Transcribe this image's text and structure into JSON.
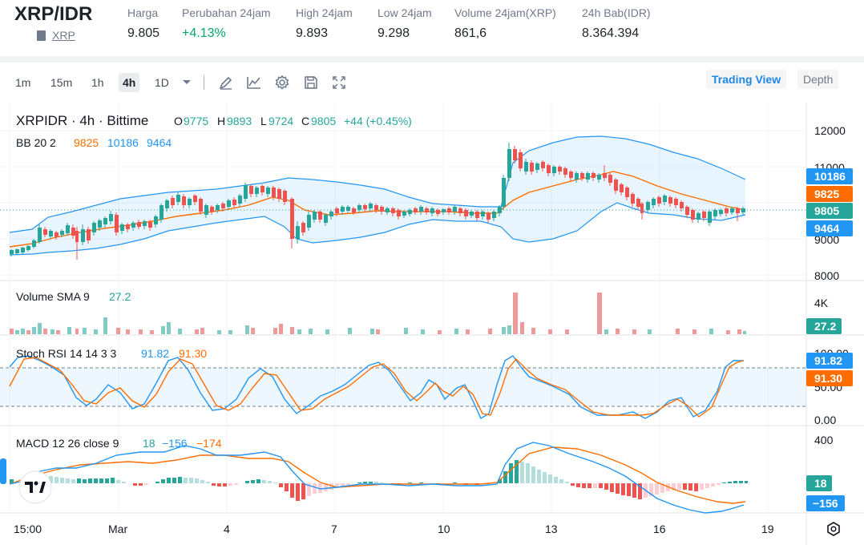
{
  "header": {
    "pair": "XRP/IDR",
    "coin_link": "XRP",
    "stats": [
      {
        "label": "Harga",
        "value": "9.805",
        "tone": "plain"
      },
      {
        "label": "Perubahan 24jam",
        "value": "+4.13%",
        "tone": "up"
      },
      {
        "label": "High 24jam",
        "value": "9.893",
        "tone": "plain"
      },
      {
        "label": "Low 24jam",
        "value": "9.298",
        "tone": "plain"
      },
      {
        "label": "Volume 24jam(XRP)",
        "value": "861,6",
        "tone": "plain"
      },
      {
        "label": "24h Bab(IDR)",
        "value": "8.364.394",
        "tone": "plain"
      }
    ]
  },
  "toolbar": {
    "timeframes": [
      "1m",
      "15m",
      "1h",
      "4h",
      "1D"
    ],
    "active_timeframe": "4h",
    "tools": [
      "drawing-pen-icon",
      "indicator-line-icon",
      "settings-gear-icon",
      "save-floppy-icon",
      "fullscreen-icon"
    ],
    "views": [
      "Trading View",
      "Depth"
    ],
    "active_view": "Trading View"
  },
  "legend": {
    "symbol": "XRPIDR · 4h · Bittime",
    "o_label": "O",
    "o": "9775",
    "h_label": "H",
    "h": "9893",
    "l_label": "L",
    "l": "9724",
    "c_label": "C",
    "c": "9805",
    "change": "+44 (+0.45%)",
    "bb_label": "BB 20 2",
    "bb_mid": "9825",
    "bb_upper": "10186",
    "bb_lower": "9464",
    "vol_label": "Volume SMA 9",
    "vol_value": "27.2",
    "stoch_label": "Stoch RSI 14 14 3 3",
    "stoch_k": "91.82",
    "stoch_d": "91.30",
    "macd_label": "MACD 12 26 close 9",
    "macd_hist": "18",
    "macd_line": "−156",
    "macd_signal": "−174"
  },
  "price_axis": {
    "ticks": [
      "12000",
      "11000",
      "9000",
      "8000"
    ],
    "tags": {
      "upper": "10186",
      "mid": "9825",
      "last": "9805",
      "lower": "9464"
    }
  },
  "volume_axis": {
    "ticks": [
      "4K"
    ],
    "tag": "27.2"
  },
  "stoch_axis": {
    "ticks": [
      "100.00",
      "50.00",
      "0.00"
    ],
    "tags": {
      "k": "91.82",
      "d": "91.30"
    }
  },
  "macd_axis": {
    "ticks": [
      "400"
    ],
    "tags": {
      "hist": "18",
      "line": "−156"
    }
  },
  "time_axis": {
    "ticks": [
      "15:00",
      "Mar",
      "4",
      "7",
      "10",
      "13",
      "16",
      "19"
    ]
  },
  "colors": {
    "up": "#26a69a",
    "down": "#ef5350",
    "bb_band": "#2196f3",
    "bb_mid": "#ff6d00",
    "stoch_k": "#2196f3",
    "stoch_d": "#ff6d00",
    "accent": "#1e88e5"
  }
}
